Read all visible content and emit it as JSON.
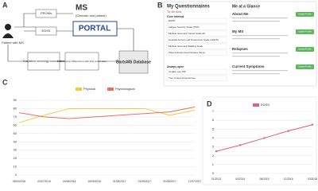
{
  "panel_labels": [
    "A",
    "B",
    "C",
    "D"
  ],
  "diagram": {
    "nodes": [
      "Patient with MS",
      "PROMs",
      "EDSS",
      "MS",
      "(Clinician and patient)",
      "PORTAL",
      "Outpatient neurology consultation",
      "EHR (Cerner Millennium) with fully coded data",
      "BartsMS Database"
    ]
  },
  "questionnaires": {
    "title": "My Questionnaires",
    "subtitle": "To do now",
    "section": "Core Interval",
    "items": [
      "EQ5D",
      "Fatigue Severity Scale (FSS)",
      "Multiple Sclerosis Impact Scale-29",
      "Hospital Anxiety and Depression Scale (HADS)",
      "Multiple Sclerosis Walking Scale",
      "Patient Determined Disease Steps"
    ],
    "section2": "Always open",
    "items2": [
      "Update your MS",
      "Your Unique Experiences"
    ]
  },
  "glance": {
    "title": "Me at a Glance",
    "sections": [
      "About Me",
      "My MS",
      "Relapses",
      "Current Symptoms"
    ],
    "button": "Update Profile"
  },
  "chart_data": [
    {
      "type": "line",
      "categories": [
        "05/04/2016",
        "03/07/2016",
        "04/08/2016",
        "16/09/2016",
        "01/03/2017",
        "01/05/2017",
        "31/05/2017",
        "17/07/2017"
      ],
      "series": [
        {
          "name": "Physical",
          "color": "#f5c842",
          "values": [
            63,
            72,
            80,
            80,
            80,
            80,
            72,
            78
          ]
        },
        {
          "name": "Psychological",
          "color": "#e8735a",
          "values": [
            75,
            70,
            68,
            70,
            72,
            74,
            76,
            82
          ]
        }
      ],
      "ylim": [
        0,
        90
      ],
      "yticks": [
        0,
        10,
        20,
        30,
        40,
        50,
        60,
        70,
        80,
        90
      ],
      "grid": true
    },
    {
      "type": "line",
      "categories": [
        "01/2013",
        "04/2014",
        "08/2015",
        "11/2016",
        "03/2018"
      ],
      "series": [
        {
          "name": "EDSS",
          "color": "#e0607e",
          "values": [
            2.5,
            3.2,
            4,
            4.8,
            5.5
          ]
        }
      ],
      "ylim": [
        0,
        7
      ],
      "yticks": [
        0,
        1,
        2,
        3,
        4,
        5,
        6,
        7
      ],
      "grid": true,
      "markers": true
    }
  ]
}
